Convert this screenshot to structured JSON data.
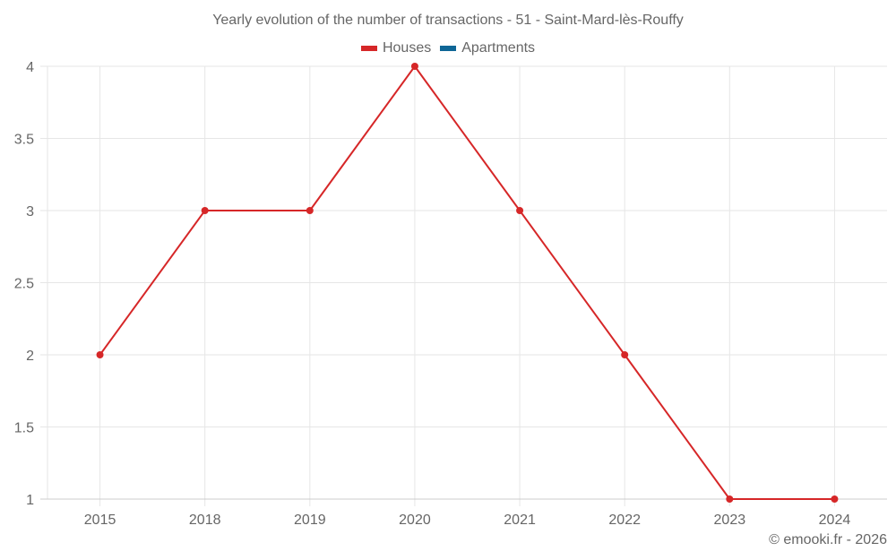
{
  "title": "Yearly evolution of the number of transactions - 51 - Saint-Mard-lès-Rouffy",
  "legend": [
    {
      "label": "Houses",
      "color": "#d62728"
    },
    {
      "label": "Apartments",
      "color": "#0e6696"
    }
  ],
  "credit": "© emooki.fr - 2026",
  "colors": {
    "houses": "#d62728",
    "apartments": "#0e6696",
    "grid": "#e6e6e6",
    "axis": "#cccccc",
    "text": "#666666"
  },
  "chart_data": {
    "type": "line",
    "title": "Yearly evolution of the number of transactions - 51 - Saint-Mard-lès-Rouffy",
    "xlabel": "",
    "ylabel": "",
    "categories": [
      "2015",
      "2018",
      "2019",
      "2020",
      "2021",
      "2022",
      "2023",
      "2024"
    ],
    "series": [
      {
        "name": "Houses",
        "color": "#d62728",
        "values": [
          2,
          3,
          3,
          4,
          3,
          2,
          1,
          1
        ]
      },
      {
        "name": "Apartments",
        "color": "#0e6696",
        "values": []
      }
    ],
    "ylim": [
      1,
      4
    ],
    "yticks": [
      1,
      1.5,
      2,
      2.5,
      3,
      3.5,
      4
    ],
    "grid": true,
    "legend_position": "top"
  }
}
